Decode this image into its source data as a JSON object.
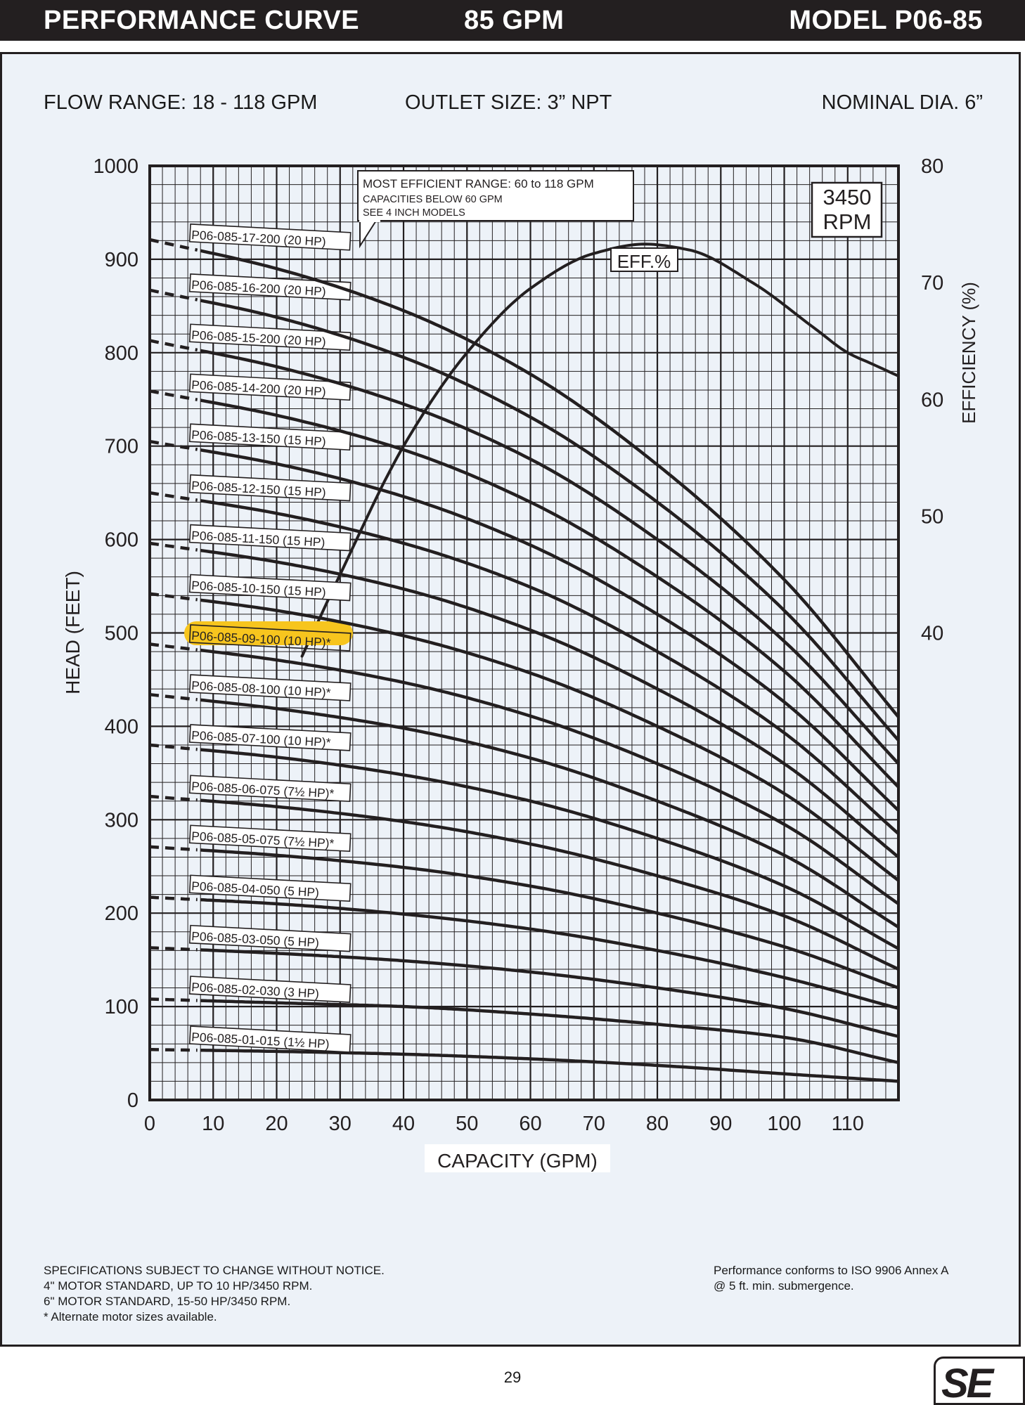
{
  "header": {
    "left": "PERFORMANCE CURVE",
    "middle": "85 GPM",
    "right": "MODEL  P06-85"
  },
  "specs": {
    "flow": "FLOW RANGE: 18 - 118 GPM",
    "outlet": "OUTLET SIZE: 3” NPT",
    "diameter": "NOMINAL DIA. 6”"
  },
  "chart_data": {
    "type": "line",
    "xlabel": "CAPACITY (GPM)",
    "ylabel": "HEAD (FEET)",
    "y2label": "EFFICIENCY (%)",
    "xlim": [
      0,
      118
    ],
    "ylim": [
      0,
      1000
    ],
    "y2lim": [
      0,
      80
    ],
    "x_ticks": [
      0,
      10,
      20,
      30,
      40,
      50,
      60,
      70,
      80,
      90,
      100,
      110
    ],
    "y_ticks": [
      0,
      100,
      200,
      300,
      400,
      500,
      600,
      700,
      800,
      900,
      1000
    ],
    "y2_ticks": [
      40,
      50,
      60,
      70,
      80
    ],
    "grid": true,
    "callout": {
      "line1": "MOST EFFICIENT RANGE: 60 to 118  GPM",
      "line2": "CAPACITIES BELOW 60 GPM",
      "line3": "SEE 4 INCH MODELS"
    },
    "speed_box": {
      "line1": "3450",
      "line2": "RPM"
    },
    "efficiency": {
      "name": "EFF.%",
      "x": [
        24,
        30,
        40,
        50,
        60,
        70,
        78,
        85,
        95,
        105,
        110,
        114,
        118
      ],
      "y": [
        38,
        45,
        56,
        64,
        69.5,
        72.5,
        73.3,
        72.8,
        70,
        66,
        64,
        63,
        62
      ]
    },
    "series": [
      {
        "name": "P06-085-01-015 (1½ HP)",
        "x": [
          0,
          20,
          40,
          60,
          80,
          100,
          118
        ],
        "y": [
          54,
          52,
          49,
          44,
          37,
          28,
          20
        ]
      },
      {
        "name": "P06-085-02-030 (3 HP)",
        "x": [
          0,
          20,
          40,
          60,
          80,
          100,
          118
        ],
        "y": [
          108,
          104,
          100,
          92,
          81,
          67,
          40
        ]
      },
      {
        "name": "P06-085-03-050 (5 HP)",
        "x": [
          0,
          20,
          40,
          60,
          80,
          100,
          118
        ],
        "y": [
          163,
          157,
          149,
          137,
          120,
          98,
          68
        ]
      },
      {
        "name": "P06-085-04-050 (5 HP)",
        "x": [
          0,
          20,
          40,
          60,
          80,
          100,
          118
        ],
        "y": [
          217,
          210,
          199,
          183,
          160,
          131,
          98
        ]
      },
      {
        "name": "P06-085-05-075 (7½ HP)*",
        "x": [
          0,
          20,
          40,
          60,
          80,
          100,
          118
        ],
        "y": [
          271,
          262,
          249,
          229,
          200,
          164,
          120
        ]
      },
      {
        "name": "P06-085-06-075 (7½ HP)*",
        "x": [
          0,
          20,
          40,
          60,
          80,
          100,
          118
        ],
        "y": [
          325,
          314,
          298,
          274,
          240,
          197,
          140
        ]
      },
      {
        "name": "P06-085-07-100 (10 HP)*",
        "x": [
          0,
          20,
          40,
          60,
          80,
          100,
          118
        ],
        "y": [
          380,
          367,
          348,
          320,
          280,
          229,
          162
        ]
      },
      {
        "name": "P06-085-08-100 (10 HP)*",
        "x": [
          0,
          20,
          40,
          60,
          80,
          100,
          118
        ],
        "y": [
          434,
          419,
          398,
          366,
          320,
          262,
          185
        ]
      },
      {
        "name": "P06-085-09-100 (10 HP)*",
        "highlight": true,
        "x": [
          0,
          20,
          40,
          60,
          80,
          100,
          118
        ],
        "y": [
          488,
          471,
          447,
          411,
          360,
          295,
          210
        ]
      },
      {
        "name": "P06-085-10-150 (15 HP)",
        "x": [
          0,
          20,
          40,
          60,
          80,
          100,
          118
        ],
        "y": [
          542,
          524,
          497,
          457,
          400,
          328,
          235
        ]
      },
      {
        "name": "P06-085-11-150 (15 HP)",
        "x": [
          0,
          20,
          40,
          60,
          80,
          100,
          118
        ],
        "y": [
          596,
          576,
          547,
          503,
          440,
          360,
          260
        ]
      },
      {
        "name": "P06-085-12-150 (15 HP)",
        "x": [
          0,
          20,
          40,
          60,
          80,
          100,
          118
        ],
        "y": [
          650,
          628,
          596,
          549,
          480,
          393,
          285
        ]
      },
      {
        "name": "P06-085-13-150 (15 HP)",
        "x": [
          0,
          20,
          40,
          60,
          80,
          100,
          118
        ],
        "y": [
          705,
          681,
          646,
          594,
          520,
          426,
          310
        ]
      },
      {
        "name": "P06-085-14-200 (20 HP)",
        "x": [
          0,
          20,
          40,
          60,
          80,
          100,
          118
        ],
        "y": [
          759,
          733,
          696,
          640,
          560,
          459,
          335
        ]
      },
      {
        "name": "P06-085-15-200 (20 HP)",
        "x": [
          0,
          20,
          40,
          60,
          80,
          100,
          118
        ],
        "y": [
          813,
          785,
          745,
          686,
          600,
          491,
          360
        ]
      },
      {
        "name": "P06-085-16-200 (20 HP)",
        "x": [
          0,
          20,
          40,
          60,
          80,
          100,
          118
        ],
        "y": [
          867,
          838,
          795,
          731,
          640,
          524,
          385
        ]
      },
      {
        "name": "P06-085-17-200 (20 HP)",
        "x": [
          0,
          20,
          40,
          60,
          80,
          100,
          118
        ],
        "y": [
          921,
          890,
          845,
          777,
          680,
          557,
          410
        ]
      }
    ]
  },
  "footer": {
    "left": [
      "SPECIFICATIONS SUBJECT TO CHANGE WITHOUT NOTICE.",
      "4\" MOTOR STANDARD, UP TO 10 HP/3450 RPM.",
      "6\" MOTOR STANDARD, 15-50 HP/3450 RPM.",
      "* Alternate motor sizes available."
    ],
    "right": [
      "Performance conforms to ISO 9906 Annex A",
      "@ 5 ft. min. submergence."
    ]
  },
  "page_number": "29",
  "logo": "SE",
  "colors": {
    "background": "#edf2f8",
    "ink": "#231f20",
    "highlight": "#f7c51e"
  }
}
